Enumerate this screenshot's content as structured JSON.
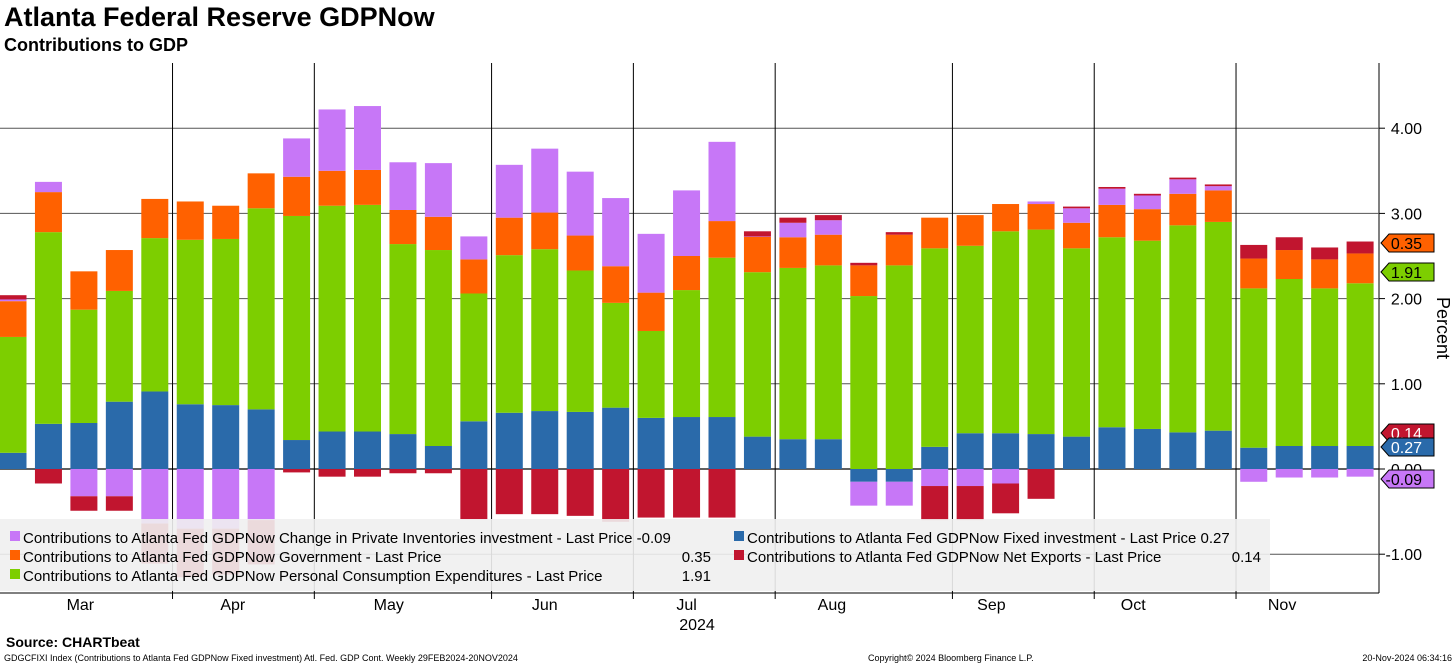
{
  "header": {
    "title": "Atlanta Federal Reserve GDPNow",
    "subtitle": "Contributions to GDP"
  },
  "footer": {
    "source": "Source: CHARTbeat",
    "ticker": "GDGCFIXI Index (Contributions to Atlanta Fed GDPNow Fixed investment) Atl. Fed. GDP Cont.  Weekly 29FEB2024-20NOV2024",
    "copyright": "Copyright© 2024 Bloomberg Finance L.P.",
    "timestamp": "20-Nov-2024 06:34:16"
  },
  "chart_data": {
    "type": "bar",
    "stacked": true,
    "frequency": "Weekly",
    "x_range": [
      "29FEB2024",
      "20NOV2024"
    ],
    "ylabel": "Percent",
    "ylim": [
      -1.4,
      4.75
    ],
    "y_ticks": [
      4.0,
      3.0,
      2.0,
      1.0,
      0.0,
      -1.0
    ],
    "y_tick_labels": [
      "4.00",
      "3.00",
      "2.00",
      "1.00",
      "0.00",
      "-1.00"
    ],
    "grid": true,
    "month_labels": [
      "Mar",
      "Apr",
      "May",
      "Jun",
      "Jul",
      "Aug",
      "Sep",
      "Oct",
      "Nov"
    ],
    "year_label": "2024",
    "series": [
      {
        "key": "pce",
        "name": "Contributions to Atlanta Fed GDPNow Personal Consumption Expenditures - Last Price",
        "last": "1.91",
        "color": "#7dce00",
        "values": [
          1.36,
          2.25,
          1.33,
          1.3,
          1.8,
          1.93,
          1.95,
          2.36,
          2.63,
          2.65,
          2.66,
          2.23,
          2.3,
          1.5,
          1.85,
          1.9,
          1.66,
          1.23,
          1.02,
          1.49,
          1.87,
          1.93,
          2.01,
          2.04,
          2.03,
          2.39,
          2.33,
          2.2,
          2.37,
          2.4,
          2.21,
          2.23,
          2.21,
          2.43,
          2.45,
          1.87,
          1.96,
          1.85,
          1.91
        ]
      },
      {
        "key": "fixed",
        "name": "Contributions to Atlanta Fed GDPNow Fixed investment - Last Price",
        "last": "0.27",
        "color": "#2a6aaa",
        "values": [
          0.19,
          0.53,
          0.54,
          0.79,
          0.91,
          0.76,
          0.75,
          0.7,
          0.34,
          0.44,
          0.44,
          0.41,
          0.27,
          0.56,
          0.66,
          0.68,
          0.67,
          0.72,
          0.6,
          0.61,
          0.61,
          0.38,
          0.35,
          0.35,
          -0.15,
          -0.15,
          0.26,
          0.42,
          0.42,
          0.41,
          0.38,
          0.49,
          0.47,
          0.43,
          0.45,
          0.25,
          0.27,
          0.27,
          0.27
        ]
      },
      {
        "key": "gov",
        "name": "Contributions to Atlanta Fed GDPNow Government - Last Price",
        "last": "0.35",
        "color": "#ff6100",
        "values": [
          0.42,
          0.47,
          0.45,
          0.48,
          0.46,
          0.45,
          0.39,
          0.41,
          0.46,
          0.41,
          0.41,
          0.4,
          0.39,
          0.4,
          0.44,
          0.43,
          0.41,
          0.43,
          0.45,
          0.4,
          0.43,
          0.42,
          0.36,
          0.36,
          0.36,
          0.36,
          0.36,
          0.36,
          0.32,
          0.3,
          0.3,
          0.38,
          0.37,
          0.37,
          0.37,
          0.35,
          0.34,
          0.34,
          0.35
        ]
      },
      {
        "key": "inv",
        "name": "Contributions to Atlanta Fed GDPNow Change in Private Inventories investment - Last Price",
        "last": "-0.09",
        "color": "#c777f7",
        "values": [
          0.02,
          0.12,
          -0.32,
          -0.32,
          -0.64,
          -0.7,
          -0.7,
          -0.6,
          0.45,
          0.72,
          0.75,
          0.56,
          0.63,
          0.27,
          0.62,
          0.75,
          0.75,
          0.8,
          0.69,
          0.77,
          0.93,
          0.0,
          0.17,
          0.17,
          -0.28,
          -0.28,
          -0.2,
          -0.2,
          -0.17,
          0.03,
          0.17,
          0.19,
          0.16,
          0.17,
          0.05,
          -0.15,
          -0.1,
          -0.1,
          -0.09
        ]
      },
      {
        "key": "nx",
        "name": "Contributions to Atlanta Fed GDPNow Net Exports - Last Price",
        "last": "0.14",
        "color": "#c1152f",
        "values": [
          0.05,
          -0.17,
          -0.17,
          -0.17,
          -0.47,
          -0.57,
          -0.54,
          -0.52,
          -0.04,
          -0.09,
          -0.09,
          -0.05,
          -0.05,
          -0.59,
          -0.53,
          -0.53,
          -0.55,
          -0.62,
          -0.57,
          -0.57,
          -0.57,
          0.06,
          0.06,
          0.06,
          0.03,
          0.03,
          -0.4,
          -0.4,
          -0.35,
          -0.35,
          0.02,
          0.02,
          0.02,
          0.02,
          0.02,
          0.16,
          0.15,
          0.14,
          0.14
        ]
      }
    ],
    "legend": {
      "position": "bottom-left",
      "items": [
        {
          "key": "inv",
          "label": "Contributions to Atlanta Fed GDPNow Change in Private Inventories investment - Last Price",
          "value": "-0.09"
        },
        {
          "key": "fixed",
          "label": "Contributions to Atlanta Fed GDPNow Fixed investment - Last Price",
          "value": "0.27"
        },
        {
          "key": "gov",
          "label": "Contributions to Atlanta Fed GDPNow Government - Last Price",
          "value": "0.35"
        },
        {
          "key": "nx",
          "label": "Contributions to Atlanta Fed GDPNow Net Exports - Last Price",
          "value": "0.14"
        },
        {
          "key": "pce",
          "label": "Contributions to Atlanta Fed GDPNow Personal Consumption Expenditures - Last Price",
          "value": "1.91"
        }
      ]
    },
    "last_value_tags": [
      {
        "series": "gov",
        "value": "0.35"
      },
      {
        "series": "pce",
        "value": "1.91"
      },
      {
        "series": "nx",
        "value": "0.14"
      },
      {
        "series": "fixed",
        "value": "0.27"
      },
      {
        "series": "inv",
        "value": "-0.09"
      }
    ]
  }
}
